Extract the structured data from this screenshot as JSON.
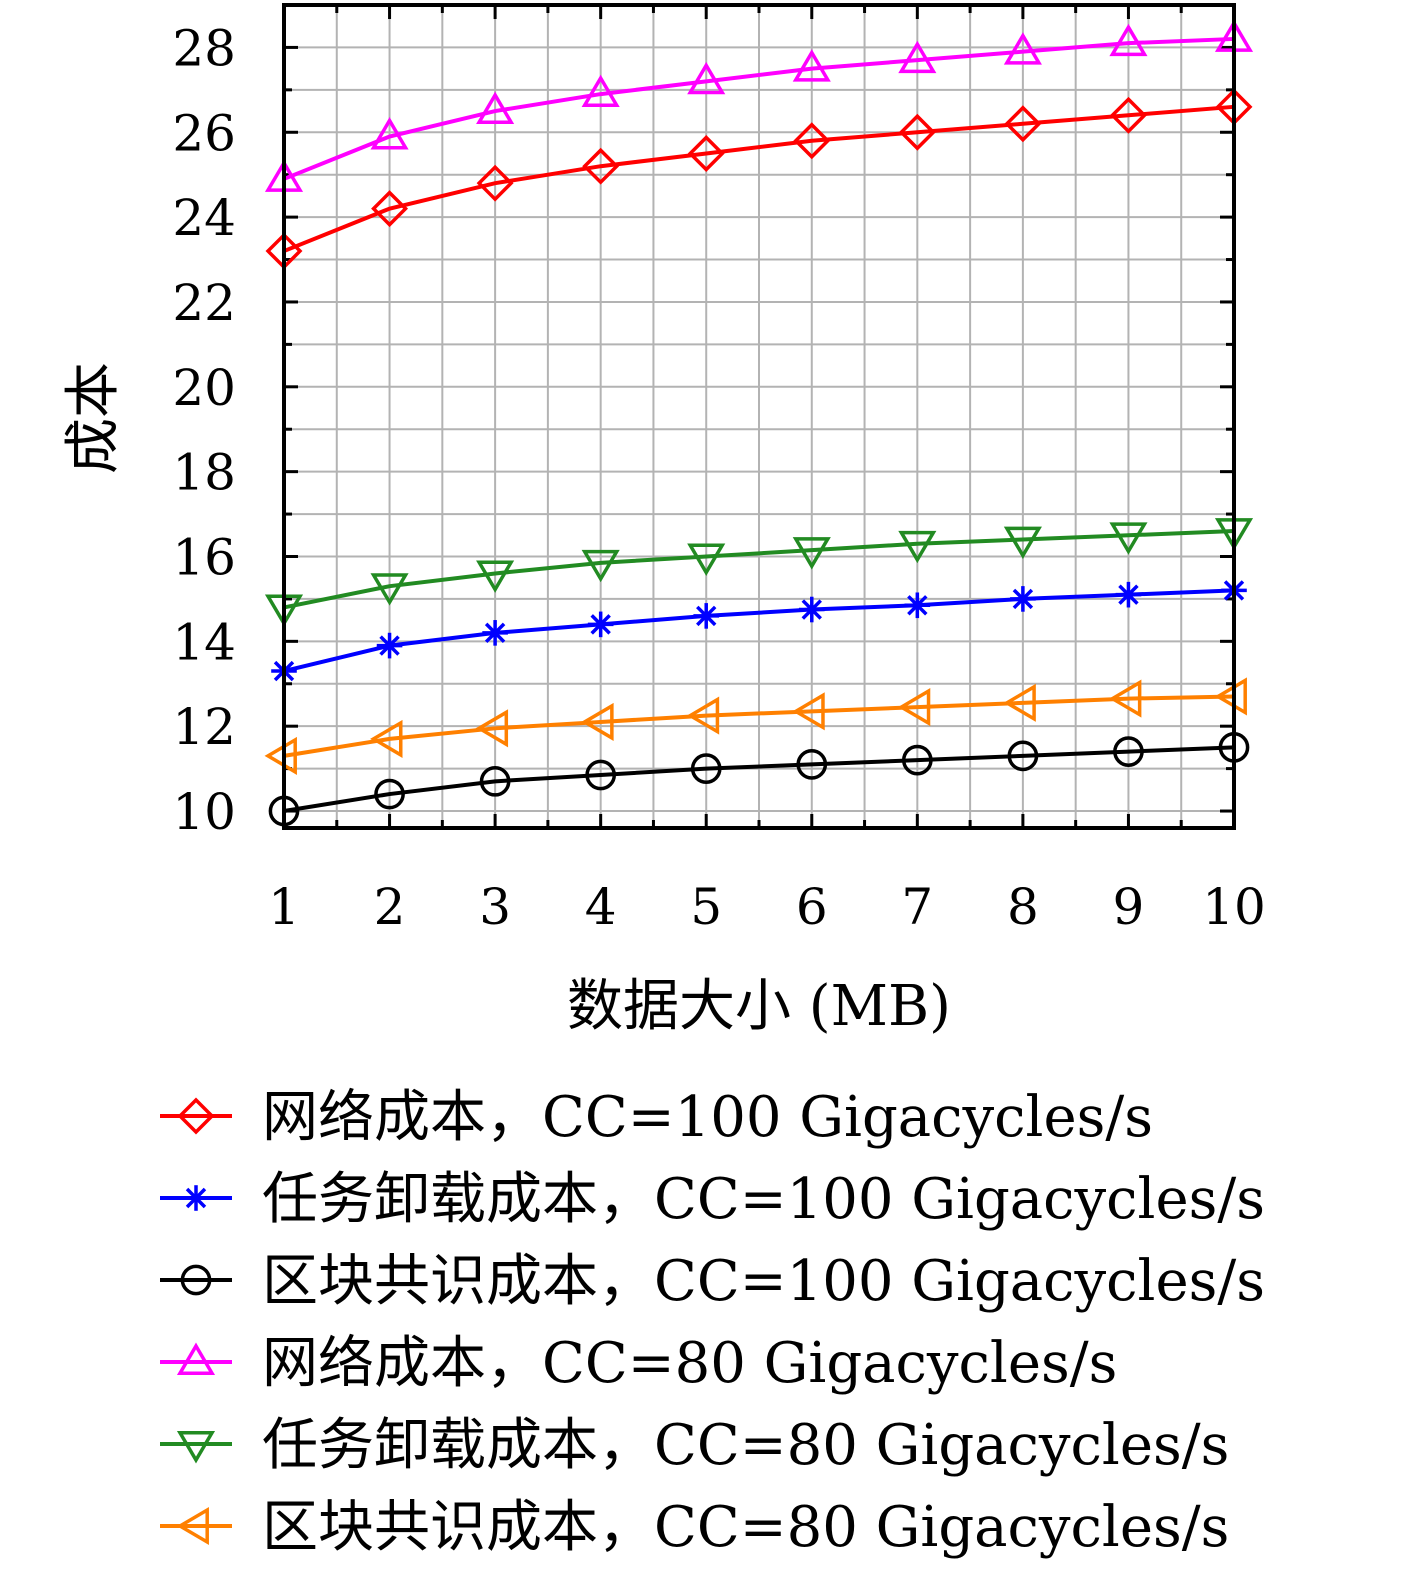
{
  "chart_data": {
    "type": "line",
    "xlabel": "数据大小 (MB)",
    "ylabel": "成本",
    "x": [
      1,
      2,
      3,
      4,
      5,
      6,
      7,
      8,
      9,
      10
    ],
    "x_ticks": [
      "1",
      "2",
      "3",
      "4",
      "5",
      "6",
      "7",
      "8",
      "9",
      "10"
    ],
    "y_ticks": [
      "10",
      "12",
      "14",
      "16",
      "18",
      "20",
      "22",
      "24",
      "26",
      "28"
    ],
    "xlim": [
      1,
      10
    ],
    "ylim": [
      9.6,
      29
    ],
    "grid": true,
    "legend_position": "bottom",
    "series": [
      {
        "name": "网络成本，CC=100 Gigacycles/s",
        "color": "#ff0000",
        "marker": "diamond",
        "values": [
          23.2,
          24.2,
          24.8,
          25.2,
          25.5,
          25.8,
          26.0,
          26.2,
          26.4,
          26.6
        ]
      },
      {
        "name": "任务卸载成本，CC=100 Gigacycles/s",
        "color": "#0000ff",
        "marker": "asterisk",
        "values": [
          13.3,
          13.9,
          14.2,
          14.4,
          14.6,
          14.75,
          14.85,
          15.0,
          15.1,
          15.2
        ]
      },
      {
        "name": "区块共识成本，CC=100 Gigacycles/s",
        "color": "#000000",
        "marker": "circle",
        "values": [
          10.0,
          10.4,
          10.7,
          10.85,
          11.0,
          11.1,
          11.2,
          11.3,
          11.4,
          11.5
        ]
      },
      {
        "name": "网络成本，CC=80 Gigacycles/s",
        "color": "#ff00ff",
        "marker": "triangle-up",
        "values": [
          24.9,
          25.9,
          26.5,
          26.9,
          27.2,
          27.5,
          27.7,
          27.9,
          28.1,
          28.2
        ]
      },
      {
        "name": "任务卸载成本，CC=80 Gigacycles/s",
        "color": "#228b22",
        "marker": "triangle-down",
        "values": [
          14.8,
          15.3,
          15.6,
          15.85,
          16.0,
          16.15,
          16.3,
          16.4,
          16.5,
          16.6
        ]
      },
      {
        "name": "区块共识成本，CC=80 Gigacycles/s",
        "color": "#ff8000",
        "marker": "triangle-left",
        "values": [
          11.3,
          11.7,
          11.95,
          12.1,
          12.25,
          12.35,
          12.45,
          12.55,
          12.65,
          12.7
        ]
      }
    ]
  }
}
